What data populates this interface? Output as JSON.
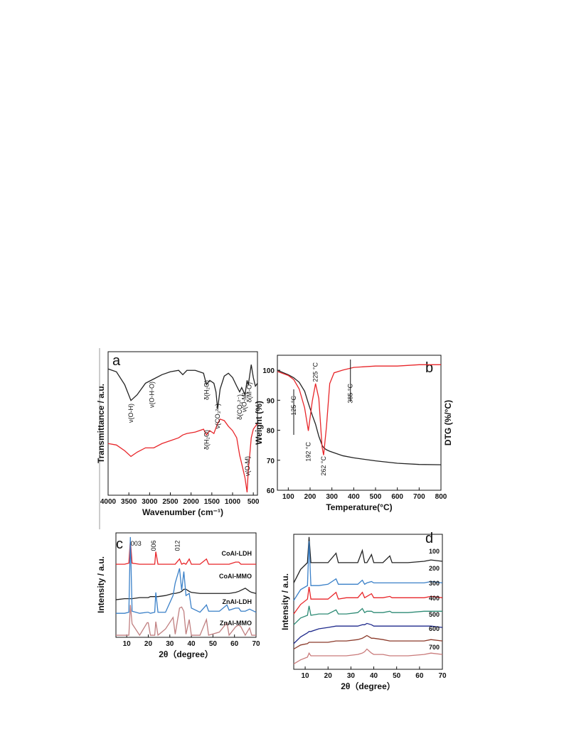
{
  "chart_data": [
    {
      "type": "line",
      "label": "a",
      "xlabel": "Wavenumber (cm⁻¹)",
      "ylabel": "Transmittance / a.u.",
      "xlim": [
        4000,
        400
      ],
      "xticks": [
        4000,
        3500,
        3000,
        2500,
        2000,
        1500,
        1000,
        500
      ],
      "ylim": [
        0,
        100
      ],
      "x": [
        4000,
        3800,
        3600,
        3450,
        3300,
        3100,
        2900,
        2700,
        2500,
        2300,
        2200,
        2100,
        1900,
        1700,
        1630,
        1550,
        1450,
        1400,
        1360,
        1300,
        1200,
        1100,
        1000,
        900,
        830,
        780,
        700,
        650,
        620,
        580,
        550,
        500,
        450,
        400
      ],
      "series": [
        {
          "color": "#222222",
          "values": [
            88,
            86,
            77,
            66,
            70,
            78,
            81,
            84,
            86,
            87,
            84,
            87,
            87,
            85,
            77,
            80,
            78,
            72,
            60,
            74,
            83,
            85,
            82,
            76,
            72,
            75,
            70,
            80,
            77,
            85,
            91,
            82,
            76,
            78
          ]
        },
        {
          "color": "#e8262a",
          "values": [
            36,
            35,
            31,
            27,
            30,
            33,
            33,
            36,
            38,
            40,
            42,
            43,
            44,
            46,
            42,
            45,
            43,
            47,
            50,
            53,
            52,
            48,
            45,
            40,
            28,
            22,
            12,
            2,
            18,
            30,
            40,
            46,
            48,
            50
          ]
        }
      ],
      "annotations": [
        {
          "text": "ν(O-H)",
          "x": 3450
        },
        {
          "text": "ν(O-H-O)",
          "x": 2950
        },
        {
          "text": "δ(H₂O)",
          "x": 1630
        },
        {
          "text": "ν(CO₃²⁻)",
          "x": 1360
        },
        {
          "text": "δ(CO₃²⁻)",
          "x": 830
        },
        {
          "text": "ν(O-M)",
          "x": 720
        },
        {
          "text": "δ(M-O)",
          "x": 600
        },
        {
          "text": "δ(H₂O)",
          "x": 1630
        },
        {
          "text": "ν(O-M)",
          "x": 640
        }
      ]
    },
    {
      "type": "line",
      "label": "b",
      "xlabel": "Temperature(°C)",
      "ylabel": "Weight (%)",
      "y2label": "DTG (%/°C)",
      "xlim": [
        50,
        800
      ],
      "xticks": [
        100,
        200,
        300,
        400,
        500,
        600,
        700,
        800
      ],
      "ylim": [
        60,
        105
      ],
      "yticks": [
        60,
        70,
        80,
        90,
        100
      ],
      "y2lim": [
        0,
        100
      ],
      "x": [
        50,
        100,
        125,
        150,
        175,
        192,
        210,
        225,
        240,
        255,
        262,
        275,
        290,
        310,
        350,
        400,
        500,
        600,
        700,
        800
      ],
      "series": [
        {
          "color": "#222222",
          "values": [
            100,
            98.5,
            97.5,
            96,
            93,
            89,
            85,
            82,
            78,
            75,
            74.2,
            73.5,
            73,
            72.5,
            71.5,
            70.8,
            69.8,
            69,
            68.6,
            68.5
          ]
        },
        {
          "color": "#e8262a",
          "axis": "y2",
          "values": [
            88,
            85,
            82,
            75,
            61,
            44,
            66,
            79,
            68,
            32,
            26,
            47,
            79,
            87,
            89,
            91,
            92,
            92,
            93,
            93
          ]
        }
      ],
      "annotations": [
        {
          "text": "125 °C",
          "x": 125
        },
        {
          "text": "192 °C",
          "x": 192
        },
        {
          "text": "225 °C",
          "x": 225
        },
        {
          "text": "262 °C",
          "x": 262
        },
        {
          "text": "385 °C",
          "x": 385
        }
      ]
    },
    {
      "type": "line",
      "label": "c",
      "xlabel": "2θ（degree）",
      "ylabel": "Intensity / a.u.",
      "xlim": [
        5,
        70
      ],
      "xticks": [
        10,
        20,
        30,
        40,
        50,
        60,
        70
      ],
      "ylim": [
        0,
        100
      ],
      "x": [
        5,
        9,
        11,
        11.7,
        12.5,
        16,
        19.5,
        20,
        21,
        23,
        23.5,
        24.5,
        28,
        31.5,
        32.5,
        34.5,
        35.5,
        36.5,
        37.5,
        39,
        40,
        44,
        47,
        48,
        53,
        56.5,
        57.5,
        60.5,
        62,
        63,
        65,
        67,
        68,
        70
      ],
      "series": [
        {
          "name": "CoAl-LDH",
          "color": "#e8262a",
          "values": [
            70,
            70,
            71,
            93,
            71,
            70,
            70,
            70,
            70,
            70,
            82,
            70,
            70,
            70,
            70,
            75,
            70,
            71,
            70,
            75,
            70,
            70,
            75,
            70,
            70,
            70,
            70,
            72,
            72,
            70,
            70,
            70,
            70,
            70
          ]
        },
        {
          "name": "CoAl-MMO",
          "color": "#222222",
          "values": [
            36,
            37,
            37,
            37,
            37,
            38,
            38,
            38,
            39,
            39,
            39,
            39,
            40,
            42,
            42,
            43,
            44,
            46,
            46,
            44,
            43,
            42,
            42,
            42,
            42,
            42,
            42,
            43,
            44,
            45,
            47,
            44,
            43,
            42
          ]
        },
        {
          "name": "ZnAl-LDH",
          "color": "#3a80c8",
          "values": [
            23,
            23,
            24,
            96,
            25,
            23,
            24,
            24,
            23,
            24,
            43,
            24,
            24,
            40,
            52,
            66,
            45,
            63,
            40,
            42,
            28,
            24,
            31,
            25,
            25,
            31,
            26,
            28,
            28,
            25,
            25,
            27,
            26,
            24
          ]
        },
        {
          "name": "ZnAl-MMO",
          "color": "#c07f80",
          "values": [
            2,
            2,
            2,
            31,
            13,
            2,
            14,
            14,
            2,
            2,
            15,
            2,
            8,
            19,
            3,
            28,
            29,
            25,
            3,
            17,
            2,
            2,
            17,
            2,
            5,
            14,
            2,
            10,
            12,
            10,
            2,
            9,
            2,
            2
          ]
        }
      ],
      "annotations": [
        {
          "text": "003",
          "x": 11.7
        },
        {
          "text": "006",
          "x": 23.5
        },
        {
          "text": "012",
          "x": 34.5
        }
      ]
    },
    {
      "type": "line",
      "label": "d",
      "xlabel": "2θ（degree）",
      "ylabel": "Intensity / a.u.",
      "xlim": [
        5,
        70
      ],
      "xticks": [
        10,
        20,
        30,
        40,
        50,
        60,
        70
      ],
      "ylim": [
        0,
        100
      ],
      "x": [
        5,
        8,
        11,
        11.7,
        12.5,
        16,
        20,
        23.5,
        24.5,
        28,
        33,
        35,
        36,
        37,
        39,
        40,
        44,
        47,
        48,
        55,
        62,
        65,
        70
      ],
      "series": [
        {
          "name": "100",
          "color": "#222222",
          "values": [
            64,
            74,
            79,
            98,
            79,
            79,
            79,
            86,
            79,
            79,
            79,
            88,
            79,
            79,
            85,
            79,
            79,
            84,
            79,
            79,
            80,
            81,
            80
          ]
        },
        {
          "name": "200",
          "color": "#3a80c8",
          "values": [
            51,
            59,
            62,
            95,
            62,
            62,
            63,
            67,
            63,
            63,
            63,
            66,
            63,
            64,
            65,
            64,
            64,
            64,
            64,
            64,
            64,
            65,
            64
          ]
        },
        {
          "name": "300",
          "color": "#e8262a",
          "values": [
            41,
            48,
            52,
            61,
            52,
            52,
            52,
            57,
            52,
            53,
            53,
            57,
            53,
            54,
            56,
            53,
            53,
            54,
            53,
            53,
            53,
            54,
            53
          ]
        },
        {
          "name": "400",
          "color": "#2e8b75",
          "values": [
            33,
            38,
            40,
            47,
            40,
            41,
            41,
            44,
            41,
            41,
            42,
            45,
            42,
            43,
            43,
            42,
            42,
            43,
            42,
            42,
            43,
            43,
            43
          ]
        },
        {
          "name": "500",
          "color": "#1f2a8c",
          "values": [
            19,
            24,
            27,
            28,
            28,
            30,
            31,
            32,
            32,
            32,
            32,
            33,
            33,
            34,
            33,
            32,
            32,
            32,
            32,
            32,
            32,
            32,
            31
          ]
        },
        {
          "name": "600",
          "color": "#8b3a2a",
          "values": [
            15,
            18,
            19,
            20,
            20,
            20,
            20,
            21,
            21,
            21,
            22,
            23,
            24,
            25,
            23,
            23,
            22,
            21,
            21,
            21,
            21,
            22,
            21
          ]
        },
        {
          "name": "700",
          "color": "#c97a7a",
          "values": [
            4,
            7,
            9,
            12,
            10,
            10,
            10,
            10,
            10,
            10,
            11,
            12,
            13,
            15,
            12,
            11,
            11,
            10,
            10,
            10,
            11,
            12,
            11
          ]
        }
      ]
    }
  ]
}
